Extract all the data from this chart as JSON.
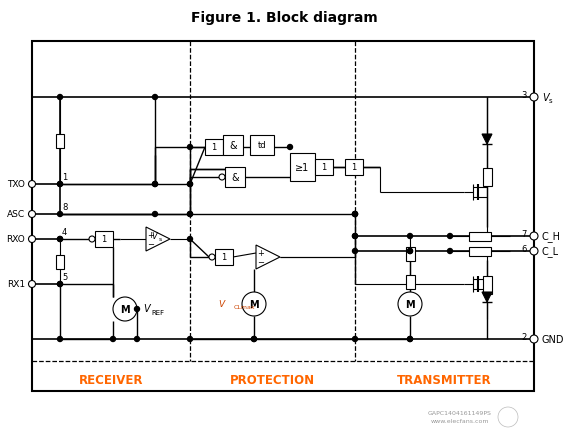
{
  "title": "Figure 1. Block diagram",
  "title_fontsize": 10,
  "title_fontweight": "bold",
  "bg_color": "#ffffff",
  "line_color": "#000000",
  "section_label_color": "#ff6600",
  "section_label_fontsize": 8.5,
  "section_label_fontweight": "bold",
  "section_labels": [
    "RECEIVER",
    "PROTECTION",
    "TRANSMITTER"
  ],
  "watermark_text1": "GAPC1404161149PS",
  "watermark_text2": "www.elecfans.com",
  "watermark_color": "#999999",
  "fig_width": 5.68,
  "fig_height": 4.31,
  "dpi": 100
}
